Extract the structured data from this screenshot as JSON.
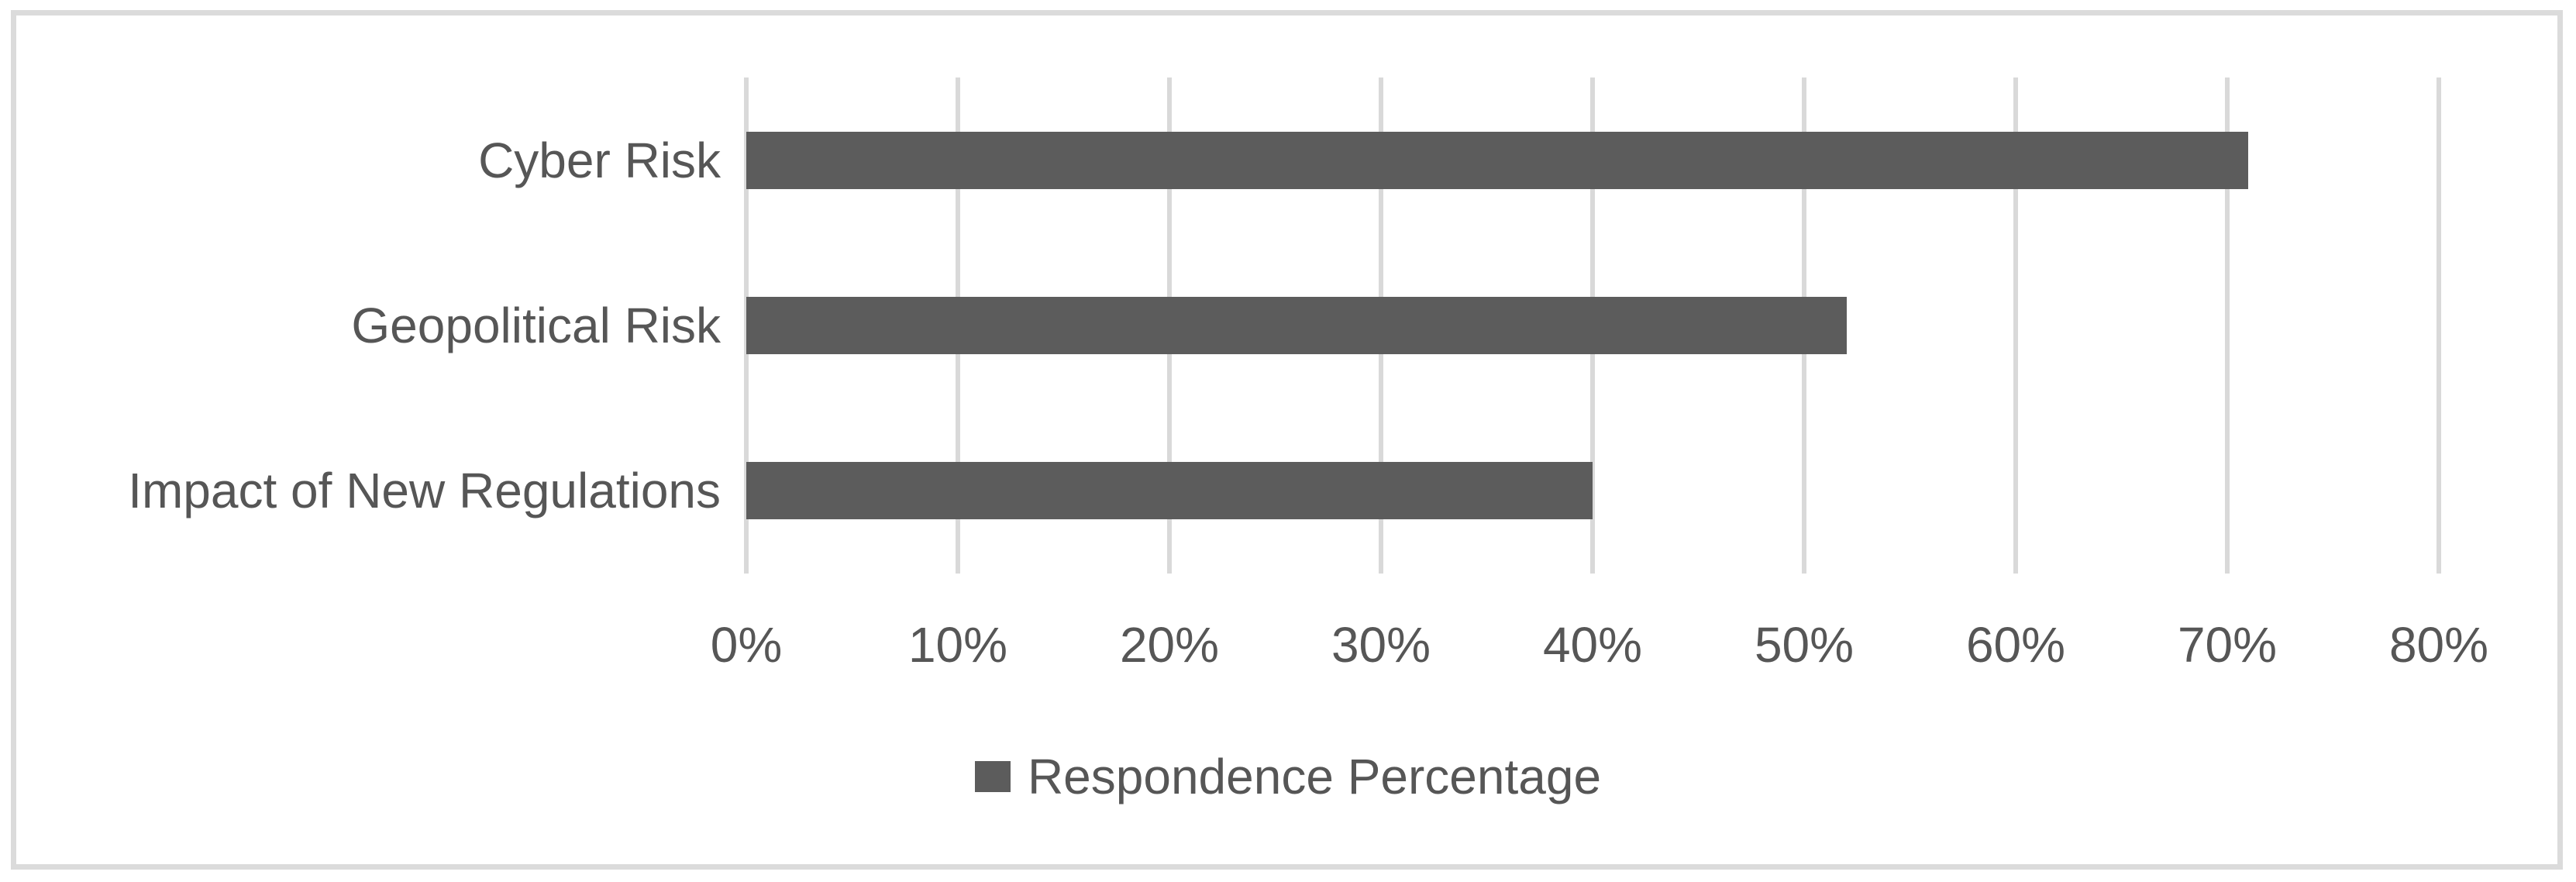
{
  "chart_data": {
    "type": "bar",
    "orientation": "horizontal",
    "title": "",
    "xlabel": "",
    "ylabel": "",
    "categories": [
      "Cyber Risk",
      "Geopolitical Risk",
      "Impact of New Regulations"
    ],
    "series": [
      {
        "name": "Respondence Percentage",
        "values": [
          71,
          52,
          40
        ]
      }
    ],
    "xlim": [
      0,
      80
    ],
    "xticks": [
      0,
      10,
      20,
      30,
      40,
      50,
      60,
      70,
      80
    ],
    "xtick_labels": [
      "0%",
      "10%",
      "20%",
      "30%",
      "40%",
      "50%",
      "60%",
      "70%",
      "80%"
    ],
    "grid": "vertical-gridlines-on",
    "legend_position": "bottom-center",
    "colors": {
      "bar": "#5C5C5C",
      "gridline": "#D9D9D9",
      "frame_border": "#DBDBDB",
      "text": "#565656",
      "background": "#FFFFFF"
    }
  },
  "legend": {
    "label": "Respondence Percentage"
  }
}
